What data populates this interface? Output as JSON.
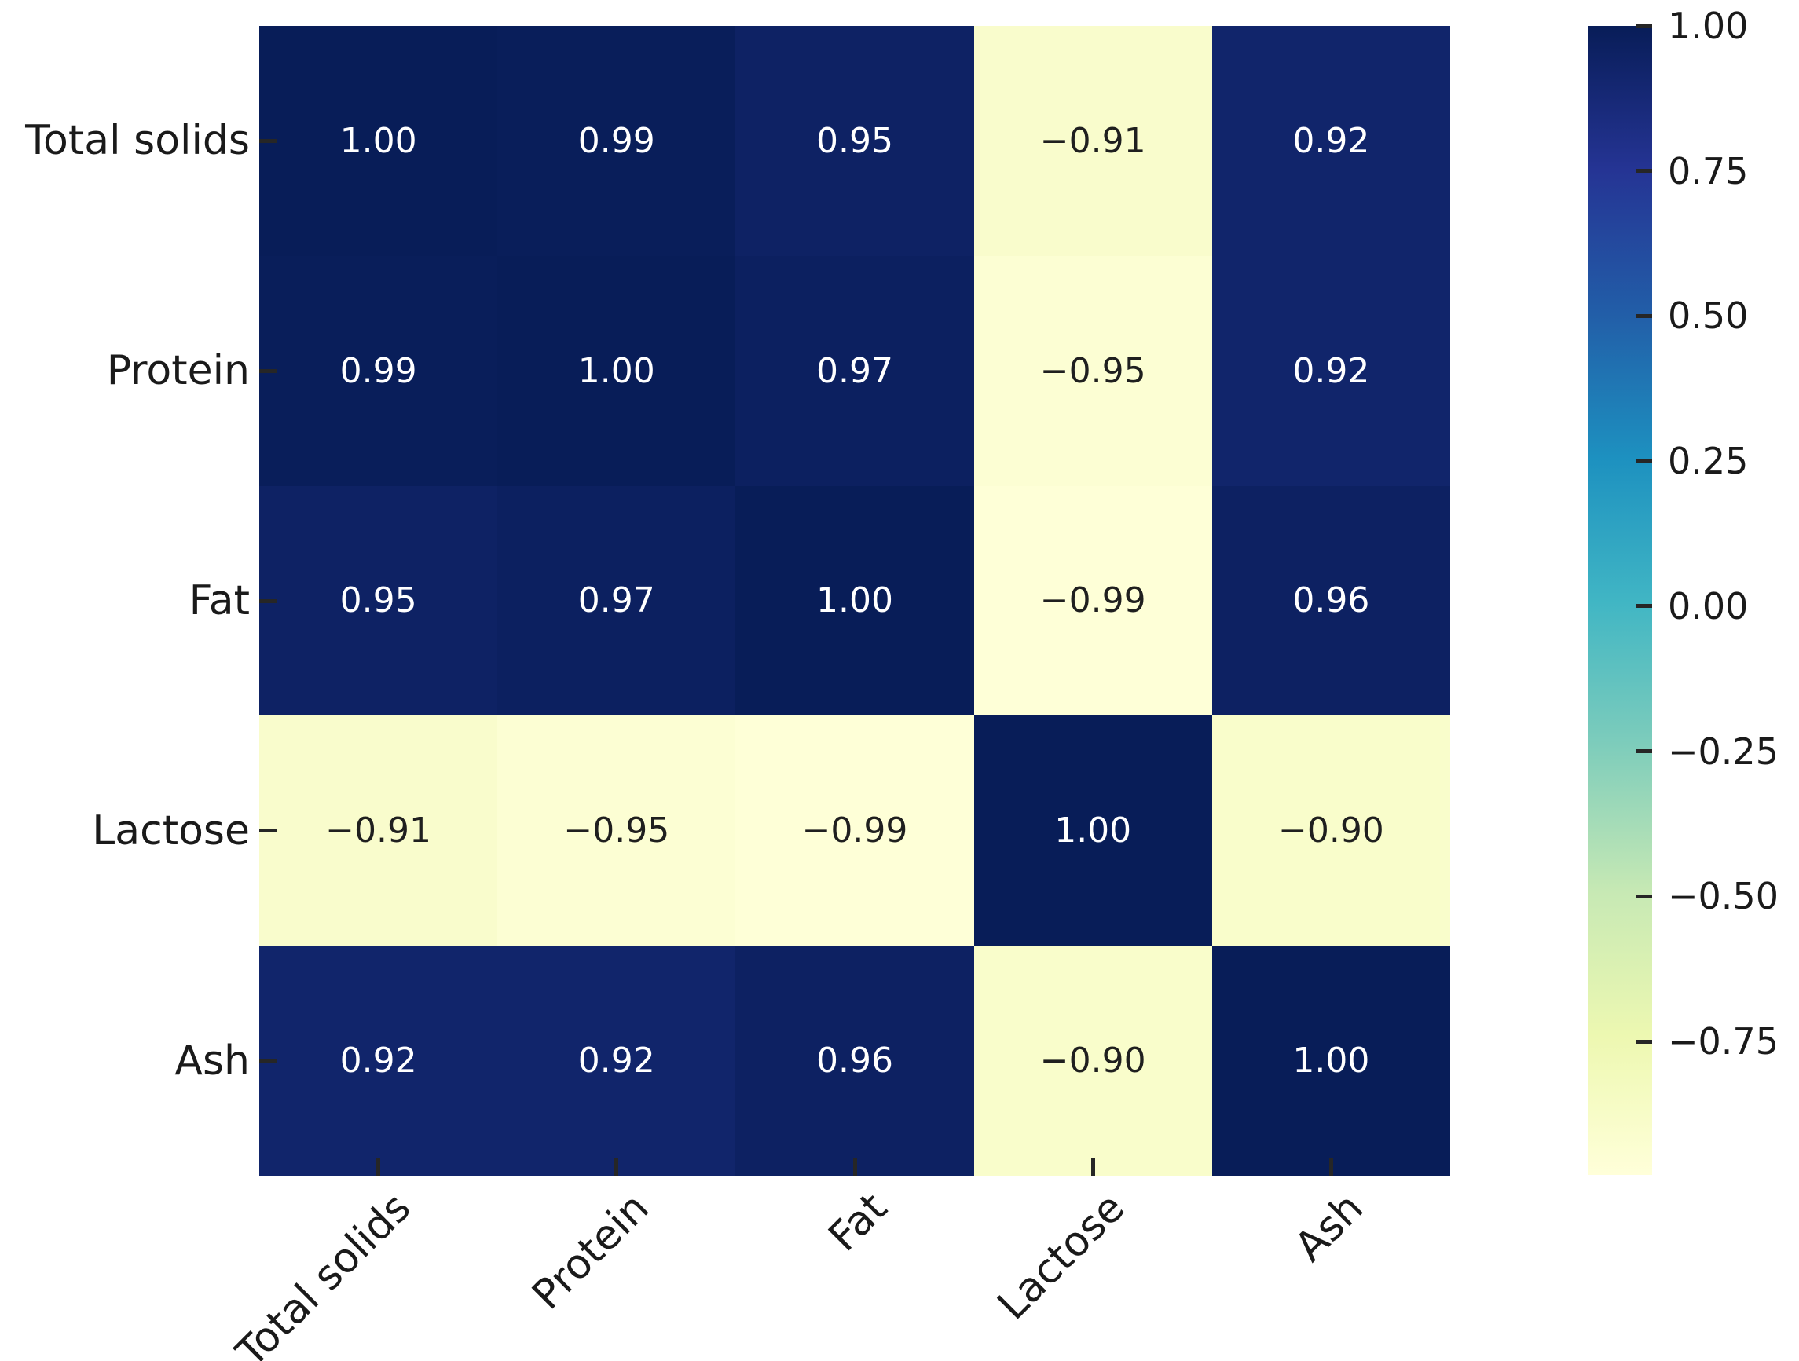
{
  "chart_data": {
    "type": "heatmap",
    "title": "",
    "x_labels": [
      "Total solids",
      "Protein",
      "Fat",
      "Lactose",
      "Ash"
    ],
    "y_labels": [
      "Total solids",
      "Protein",
      "Fat",
      "Lactose",
      "Ash"
    ],
    "matrix": [
      [
        "1.00",
        "0.99",
        "0.95",
        "−0.91",
        "0.92"
      ],
      [
        "0.99",
        "1.00",
        "0.97",
        "−0.95",
        "0.92"
      ],
      [
        "0.95",
        "0.97",
        "1.00",
        "−0.99",
        "0.96"
      ],
      [
        "−0.91",
        "−0.95",
        "−0.99",
        "1.00",
        "−0.90"
      ],
      [
        "0.92",
        "0.92",
        "0.96",
        "−0.90",
        "1.00"
      ]
    ],
    "matrix_numeric": [
      [
        1.0,
        0.99,
        0.95,
        -0.91,
        0.92
      ],
      [
        0.99,
        1.0,
        0.97,
        -0.95,
        0.92
      ],
      [
        0.95,
        0.97,
        1.0,
        -0.99,
        0.96
      ],
      [
        -0.91,
        -0.95,
        -0.99,
        1.0,
        -0.9
      ],
      [
        0.92,
        0.92,
        0.96,
        -0.9,
        1.0
      ]
    ],
    "colormap": "YlGnBu",
    "vmin": -0.99,
    "vmax": 1.0,
    "value_colors": {
      "1.00": "#081d58",
      "0.99": "#091e5a",
      "0.97": "#0c2060",
      "0.96": "#0d2162",
      "0.95": "#0e2264",
      "0.92": "#11256b",
      "−0.90": "#f9fdcb",
      "−0.91": "#f9fccc",
      "−0.95": "#fcfed3",
      "−0.99": "#feffd7"
    },
    "cell_text_color_positive": "#ffffff",
    "cell_text_color_negative": "#1f1f1f",
    "axis_label_color": "#1a1a1a",
    "tick_color": "#262626",
    "background": "#ffffff",
    "grid": false,
    "legend_position": "right-colorbar",
    "colorbar": {
      "ticks": [
        {
          "label": "1.00",
          "p": 0.0
        },
        {
          "label": "0.75",
          "p": 0.12626
        },
        {
          "label": "0.50",
          "p": 0.25252
        },
        {
          "label": "0.25",
          "p": 0.37878
        },
        {
          "label": "0.00",
          "p": 0.50504
        },
        {
          "label": "−0.25",
          "p": 0.6313
        },
        {
          "label": "−0.50",
          "p": 0.75756
        },
        {
          "label": "−0.75",
          "p": 0.88382
        }
      ],
      "gradient": [
        {
          "pos": 0.0,
          "color": "#081d58"
        },
        {
          "pos": 0.1256,
          "color": "#253494"
        },
        {
          "pos": 0.2513,
          "color": "#225ea8"
        },
        {
          "pos": 0.3769,
          "color": "#1d91c0"
        },
        {
          "pos": 0.5025,
          "color": "#41b6c4"
        },
        {
          "pos": 0.6281,
          "color": "#7fcdbb"
        },
        {
          "pos": 0.7538,
          "color": "#c7e9b4"
        },
        {
          "pos": 0.8794,
          "color": "#edf8b1"
        },
        {
          "pos": 1.0,
          "color": "#ffffd9"
        }
      ]
    }
  }
}
